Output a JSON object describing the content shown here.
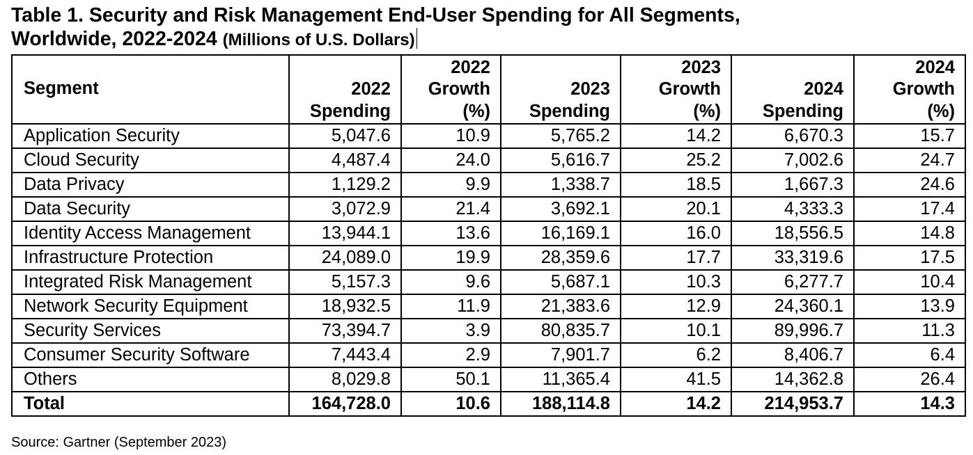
{
  "title": {
    "line1": "Table 1. Security and Risk Management End-User Spending for All Segments,",
    "line2_main": "Worldwide, 2022-2024 ",
    "line2_small": "(Millions of U.S. Dollars)"
  },
  "headers": [
    [
      "Segment"
    ],
    [
      "2022",
      "Spending"
    ],
    [
      "2022",
      "Growth",
      "(%)"
    ],
    [
      "2023",
      "Spending"
    ],
    [
      "2023",
      "Growth",
      "(%)"
    ],
    [
      "2024",
      "Spending"
    ],
    [
      "2024",
      "Growth",
      "(%)"
    ]
  ],
  "rows": [
    [
      "Application Security",
      "5,047.6",
      "10.9",
      "5,765.2",
      "14.2",
      "6,670.3",
      "15.7"
    ],
    [
      "Cloud Security",
      "4,487.4",
      "24.0",
      "5,616.7",
      "25.2",
      "7,002.6",
      "24.7"
    ],
    [
      "Data Privacy",
      "1,129.2",
      "9.9",
      "1,338.7",
      "18.5",
      "1,667.3",
      "24.6"
    ],
    [
      "Data Security",
      "3,072.9",
      "21.4",
      "3,692.1",
      "20.1",
      "4,333.3",
      "17.4"
    ],
    [
      "Identity Access Management",
      "13,944.1",
      "13.6",
      "16,169.1",
      "16.0",
      "18,556.5",
      "14.8"
    ],
    [
      "Infrastructure Protection",
      "24,089.0",
      "19.9",
      "28,359.6",
      "17.7",
      "33,319.6",
      "17.5"
    ],
    [
      "Integrated Risk Management",
      "5,157.3",
      "9.6",
      "5,687.1",
      "10.3",
      "6,277.7",
      "10.4"
    ],
    [
      "Network Security Equipment",
      "18,932.5",
      "11.9",
      "21,383.6",
      "12.9",
      "24,360.1",
      "13.9"
    ],
    [
      "Security Services",
      "73,394.7",
      "3.9",
      "80,835.7",
      "10.1",
      "89,996.7",
      "11.3"
    ],
    [
      "Consumer Security Software",
      "7,443.4",
      "2.9",
      "7,901.7",
      "6.2",
      "8,406.7",
      "6.4"
    ],
    [
      "Others",
      "8,029.8",
      "50.1",
      "11,365.4",
      "41.5",
      "14,362.8",
      "26.4"
    ]
  ],
  "total": [
    "Total",
    "164,728.0",
    "10.6",
    "188,114.8",
    "14.2",
    "214,953.7",
    "14.3"
  ],
  "source": "Source: Gartner (September 2023)"
}
